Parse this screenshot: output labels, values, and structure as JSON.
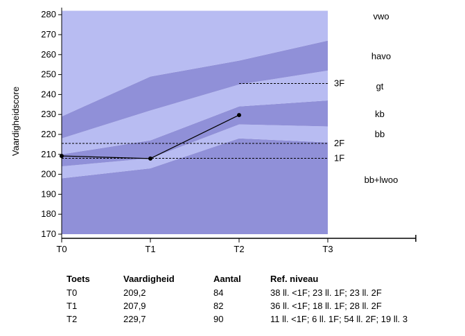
{
  "chart_data": {
    "type": "line",
    "ylabel": "Vaardigheidscore",
    "xlabel": "",
    "categories": [
      "T0",
      "T1",
      "T2",
      "T3"
    ],
    "ylim": [
      170,
      280
    ],
    "y_ticks": [
      170,
      180,
      190,
      200,
      210,
      220,
      230,
      240,
      250,
      260,
      270,
      280
    ],
    "series": [
      {
        "x": [
          "T0",
          "T1",
          "T2"
        ],
        "values": [
          209.2,
          207.9,
          229.7
        ],
        "color": "#000000"
      }
    ],
    "bands": [
      {
        "label": "bb+lwoo",
        "lower": [
          170,
          170,
          170,
          170
        ],
        "upper": [
          198,
          203,
          218,
          216
        ],
        "color": "#9090d8"
      },
      {
        "label": "bb",
        "lower": [
          198,
          203,
          218,
          216
        ],
        "upper": [
          204,
          208,
          225,
          224
        ],
        "color": "#b8bcf2"
      },
      {
        "label": "kb",
        "lower": [
          204,
          208,
          225,
          224
        ],
        "upper": [
          210,
          217,
          234,
          237
        ],
        "color": "#9090d8"
      },
      {
        "label": "gt",
        "lower": [
          210,
          217,
          234,
          237
        ],
        "upper": [
          218,
          232,
          245,
          252
        ],
        "color": "#b8bcf2"
      },
      {
        "label": "havo",
        "lower": [
          218,
          232,
          245,
          252
        ],
        "upper": [
          229,
          249,
          257,
          267
        ],
        "color": "#9090d8"
      },
      {
        "label": "vwo",
        "lower": [
          229,
          249,
          257,
          267
        ],
        "upper": [
          282,
          282,
          282,
          282
        ],
        "color": "#b8bcf2"
      }
    ],
    "band_label_values": {
      "vwo": 279,
      "havo": 259,
      "gt": 244,
      "kb": 230,
      "bb": 220,
      "bb+lwoo": 197
    },
    "reference_lines": [
      {
        "label": "1F",
        "value": 208,
        "from": "T0",
        "to": "T3"
      },
      {
        "label": "2F",
        "value": 215.5,
        "from": "T0",
        "to": "T3"
      },
      {
        "label": "3F",
        "value": 245.5,
        "from": "T2",
        "to": "T3"
      }
    ],
    "grid": false,
    "legend": "none"
  },
  "table": {
    "headers": [
      "Toets",
      "Vaardigheid",
      "Aantal",
      "Ref. niveau"
    ],
    "rows": [
      [
        "T0",
        "209,2",
        "84",
        "38 ll. <1F; 23 ll. 1F; 23 ll. 2F"
      ],
      [
        "T1",
        "207,9",
        "82",
        "36 ll. <1F; 18 ll. 1F; 28 ll. 2F"
      ],
      [
        "T2",
        "229,7",
        "90",
        "11 ll. <1F; 6 ll. 1F; 54 ll. 2F; 19 ll. 3"
      ]
    ]
  }
}
